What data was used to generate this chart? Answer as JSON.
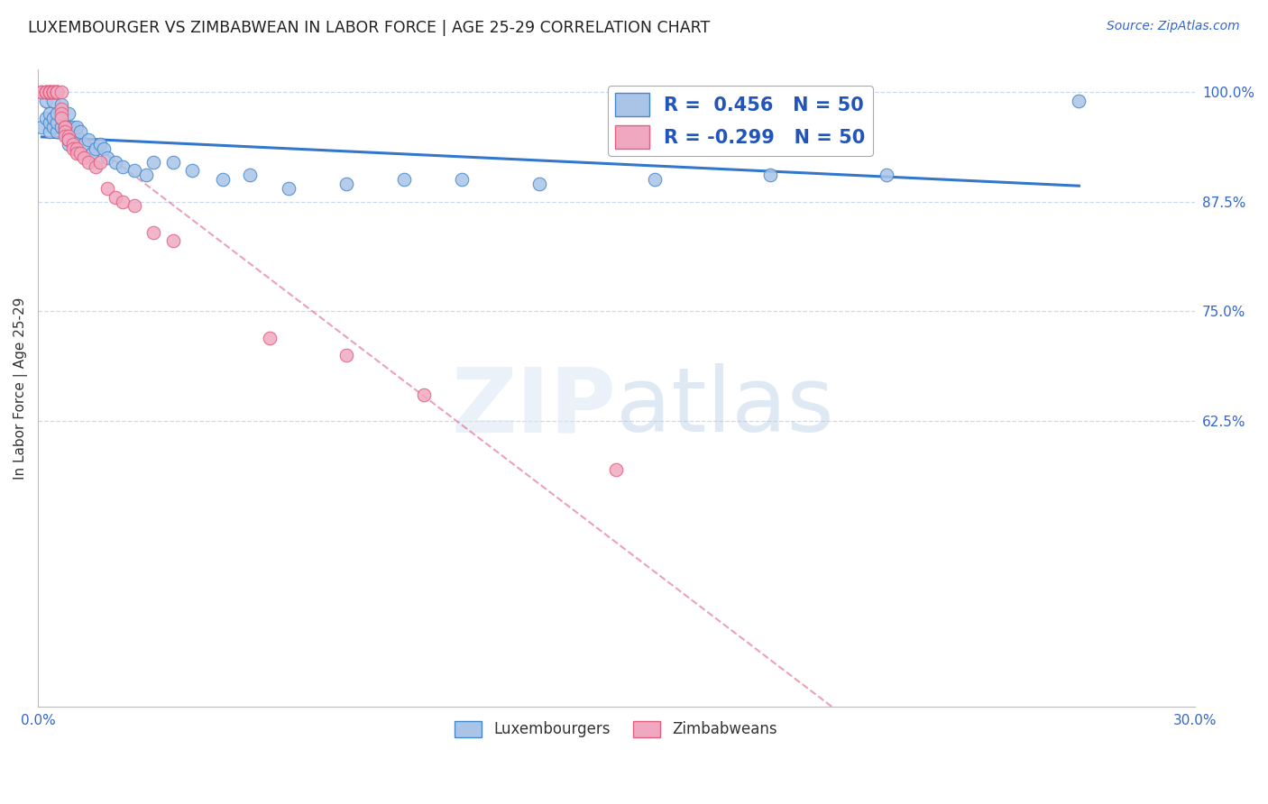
{
  "title": "LUXEMBOURGER VS ZIMBABWEAN IN LABOR FORCE | AGE 25-29 CORRELATION CHART",
  "source": "Source: ZipAtlas.com",
  "ylabel": "In Labor Force | Age 25-29",
  "xlim": [
    0.0,
    0.3
  ],
  "ylim": [
    0.3,
    1.025
  ],
  "yticks": [
    1.0,
    0.875,
    0.75,
    0.625
  ],
  "xticks": [
    0.0,
    0.3
  ],
  "ytick_labels": [
    "100.0%",
    "87.5%",
    "75.0%",
    "62.5%"
  ],
  "xtick_labels": [
    "0.0%",
    "30.0%"
  ],
  "lux_r": 0.456,
  "lux_n": 50,
  "zim_r": -0.299,
  "zim_n": 50,
  "lux_color": "#aac4e8",
  "zim_color": "#f0a8c0",
  "lux_edge_color": "#4488cc",
  "zim_edge_color": "#e06080",
  "lux_line_color": "#3377cc",
  "zim_line_color": "#dd5577",
  "background_color": "#ffffff",
  "grid_color": "#ccd8ee",
  "lux_x": [
    0.001,
    0.002,
    0.002,
    0.003,
    0.003,
    0.003,
    0.004,
    0.004,
    0.004,
    0.005,
    0.005,
    0.005,
    0.006,
    0.006,
    0.006,
    0.007,
    0.007,
    0.008,
    0.008,
    0.008,
    0.009,
    0.009,
    0.01,
    0.01,
    0.011,
    0.012,
    0.013,
    0.014,
    0.015,
    0.016,
    0.017,
    0.018,
    0.02,
    0.022,
    0.025,
    0.028,
    0.03,
    0.035,
    0.04,
    0.048,
    0.055,
    0.065,
    0.08,
    0.095,
    0.11,
    0.13,
    0.16,
    0.19,
    0.22,
    0.27
  ],
  "lux_y": [
    0.96,
    0.97,
    0.99,
    0.955,
    0.965,
    0.975,
    0.96,
    0.97,
    0.99,
    0.955,
    0.965,
    0.975,
    0.96,
    0.97,
    0.985,
    0.955,
    0.96,
    0.94,
    0.96,
    0.975,
    0.955,
    0.96,
    0.95,
    0.96,
    0.955,
    0.94,
    0.945,
    0.93,
    0.935,
    0.94,
    0.935,
    0.925,
    0.92,
    0.915,
    0.91,
    0.905,
    0.92,
    0.92,
    0.91,
    0.9,
    0.905,
    0.89,
    0.895,
    0.9,
    0.9,
    0.895,
    0.9,
    0.905,
    0.905,
    0.99
  ],
  "zim_x": [
    0.001,
    0.001,
    0.002,
    0.002,
    0.002,
    0.002,
    0.003,
    0.003,
    0.003,
    0.003,
    0.003,
    0.004,
    0.004,
    0.004,
    0.004,
    0.005,
    0.005,
    0.005,
    0.005,
    0.005,
    0.006,
    0.006,
    0.006,
    0.006,
    0.007,
    0.007,
    0.007,
    0.007,
    0.008,
    0.008,
    0.008,
    0.009,
    0.009,
    0.01,
    0.01,
    0.011,
    0.012,
    0.013,
    0.015,
    0.016,
    0.018,
    0.02,
    0.022,
    0.025,
    0.03,
    0.035,
    0.06,
    0.08,
    0.1,
    0.15
  ],
  "zim_y": [
    1.0,
    1.0,
    1.0,
    1.0,
    1.0,
    1.0,
    1.0,
    1.0,
    1.0,
    1.0,
    1.0,
    1.0,
    1.0,
    1.0,
    1.0,
    1.0,
    1.0,
    1.0,
    1.0,
    1.0,
    1.0,
    0.98,
    0.975,
    0.97,
    0.96,
    0.96,
    0.955,
    0.95,
    0.95,
    0.945,
    0.945,
    0.94,
    0.935,
    0.935,
    0.93,
    0.93,
    0.925,
    0.92,
    0.915,
    0.92,
    0.89,
    0.88,
    0.875,
    0.87,
    0.84,
    0.83,
    0.72,
    0.7,
    0.655,
    0.57
  ],
  "zim_line_x_start": 0.001,
  "zim_line_x_end": 0.3,
  "lux_line_x_start": 0.001,
  "lux_line_x_end": 0.27
}
